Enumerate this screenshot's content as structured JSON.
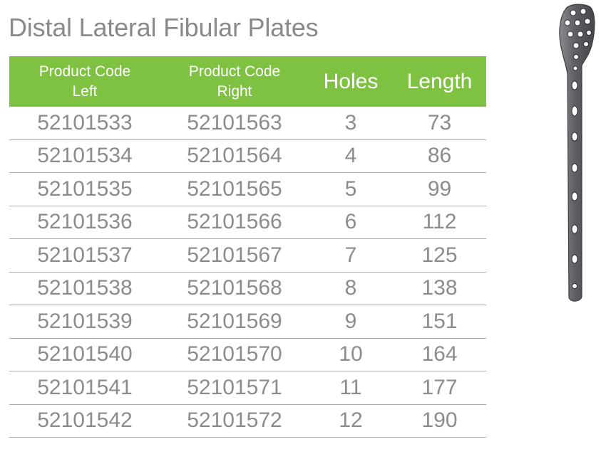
{
  "title": "Distal Lateral Fibular Plates",
  "table": {
    "headers": {
      "left": [
        "Product Code",
        "Left"
      ],
      "right": [
        "Product Code",
        "Right"
      ],
      "holes": "Holes",
      "length": "Length"
    },
    "rows": [
      {
        "left": "52101533",
        "right": "52101563",
        "holes": "3",
        "length": "73"
      },
      {
        "left": "52101534",
        "right": "52101564",
        "holes": "4",
        "length": "86"
      },
      {
        "left": "52101535",
        "right": "52101565",
        "holes": "5",
        "length": "99"
      },
      {
        "left": "52101536",
        "right": "52101566",
        "holes": "6",
        "length": "112"
      },
      {
        "left": "52101537",
        "right": "52101567",
        "holes": "7",
        "length": "125"
      },
      {
        "left": "52101538",
        "right": "52101568",
        "holes": "8",
        "length": "138"
      },
      {
        "left": "52101539",
        "right": "52101569",
        "holes": "9",
        "length": "151"
      },
      {
        "left": "52101540",
        "right": "52101570",
        "holes": "10",
        "length": "164"
      },
      {
        "left": "52101541",
        "right": "52101571",
        "holes": "11",
        "length": "177"
      },
      {
        "left": "52101542",
        "right": "52101572",
        "holes": "12",
        "length": "190"
      }
    ]
  },
  "colors": {
    "header_bg": "#7fc241",
    "header_text": "#ffffff",
    "body_text": "#8c8c8c",
    "title_text": "#8a8a8a",
    "row_border": "#a9a9a9",
    "plate_metal": "#6e6f73"
  },
  "image": {
    "icon": "bone-plate-icon"
  }
}
